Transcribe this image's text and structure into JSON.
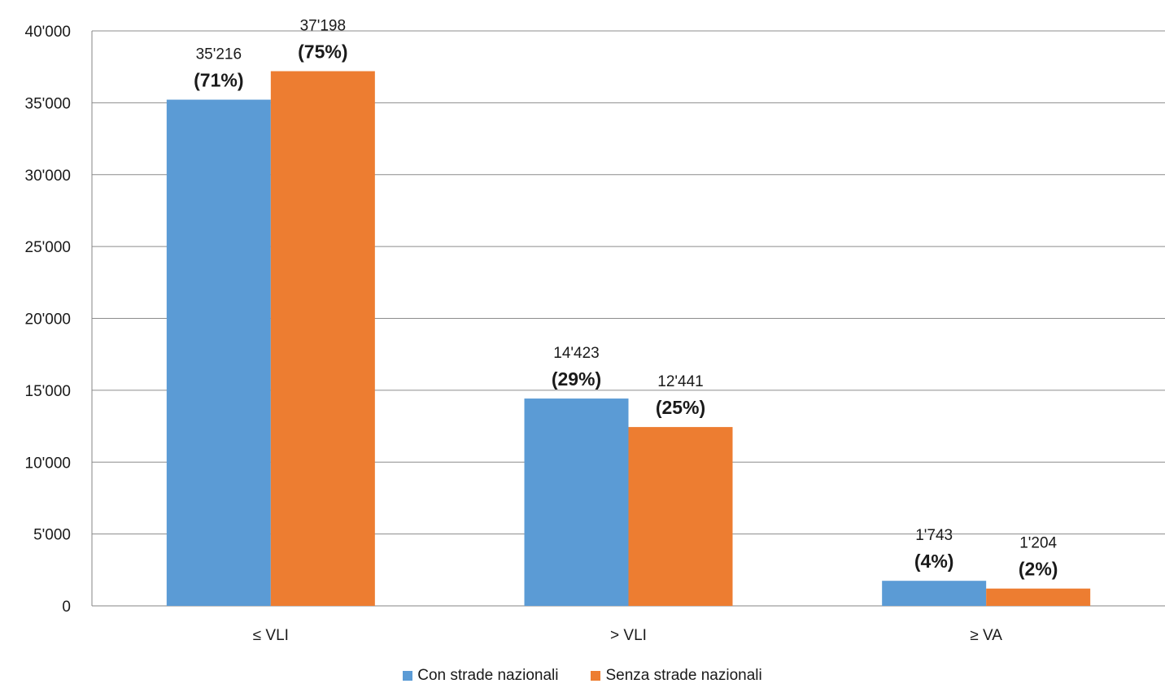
{
  "chart_data": {
    "type": "bar",
    "title": "",
    "xlabel": "",
    "ylabel": "",
    "categories": [
      "≤ VLI",
      "> VLI",
      "≥ VA"
    ],
    "ylim": [
      0,
      40000
    ],
    "yticks": [
      0,
      5000,
      10000,
      15000,
      20000,
      25000,
      30000,
      35000,
      40000
    ],
    "ytick_labels": [
      "0",
      "5'000",
      "10'000",
      "15'000",
      "20'000",
      "25'000",
      "30'000",
      "35'000",
      "40'000"
    ],
    "grid": true,
    "legend_position": "bottom",
    "series": [
      {
        "name": "Con strade nazionali",
        "color": "#5B9BD5",
        "values": [
          35216,
          14423,
          1743
        ],
        "value_labels": [
          "35'216",
          "14'423",
          "1'743"
        ],
        "pct_labels": [
          "(71%)",
          "(29%)",
          "(4%)"
        ]
      },
      {
        "name": "Senza strade nazionali",
        "color": "#ED7D31",
        "values": [
          37198,
          12441,
          1204
        ],
        "value_labels": [
          "37'198",
          "12'441",
          "1'204"
        ],
        "pct_labels": [
          "(75%)",
          "(25%)",
          "(2%)"
        ]
      }
    ]
  }
}
